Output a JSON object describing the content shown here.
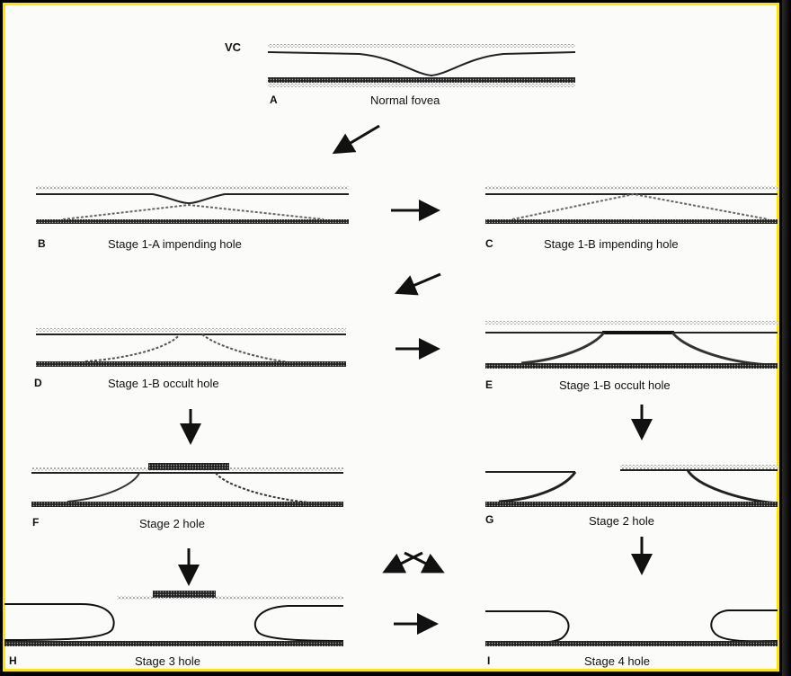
{
  "frame_color": "#ffe600",
  "vc_label": "VC",
  "panels": [
    {
      "letter": "A",
      "caption": "Normal fovea"
    },
    {
      "letter": "B",
      "caption": "Stage 1-A impending hole"
    },
    {
      "letter": "C",
      "caption": "Stage 1-B impending hole"
    },
    {
      "letter": "D",
      "caption": "Stage 1-B occult hole"
    },
    {
      "letter": "E",
      "caption": "Stage 1-B occult hole"
    },
    {
      "letter": "F",
      "caption": "Stage 2 hole"
    },
    {
      "letter": "G",
      "caption": "Stage 2 hole"
    },
    {
      "letter": "H",
      "caption": "Stage 3 hole"
    },
    {
      "letter": "I",
      "caption": "Stage 4 hole"
    }
  ],
  "arrows": [
    "down-left",
    "right",
    "down-left",
    "right",
    "down",
    "down",
    "down",
    "crossed",
    "down",
    "right"
  ]
}
